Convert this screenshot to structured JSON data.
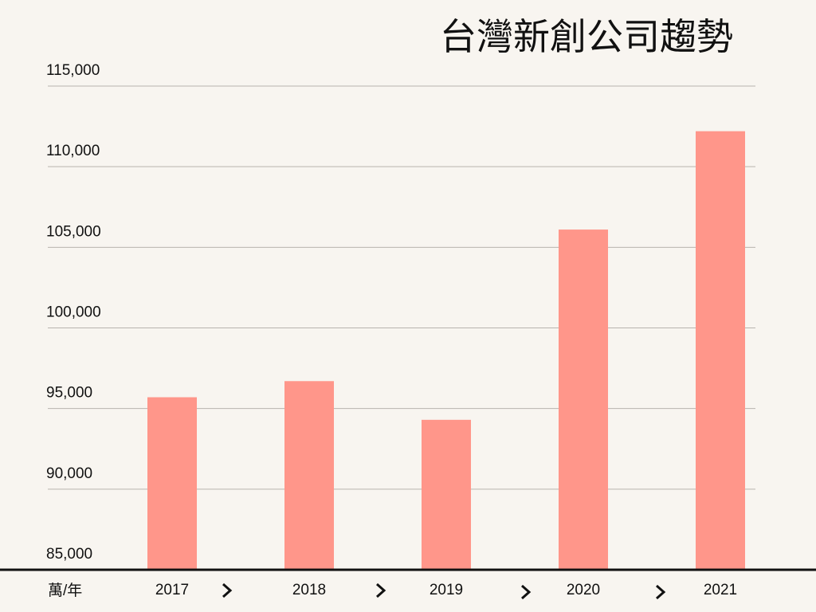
{
  "chart_data": {
    "type": "bar",
    "title": "台灣新創公司趨勢",
    "unit_label": "萬/年",
    "categories": [
      "2017",
      "2018",
      "2019",
      "2020",
      "2021"
    ],
    "values": [
      95700,
      96700,
      94300,
      106100,
      112200
    ],
    "color": "#ff968a",
    "ylim": [
      85000,
      115000
    ],
    "yticks": [
      {
        "value": 85000,
        "label": "85,000"
      },
      {
        "value": 90000,
        "label": "90,000"
      },
      {
        "value": 95000,
        "label": "95,000"
      },
      {
        "value": 100000,
        "label": "100,000"
      },
      {
        "value": 105000,
        "label": "105,000"
      },
      {
        "value": 110000,
        "label": "110,000"
      },
      {
        "value": 115000,
        "label": "115,000"
      }
    ],
    "grid": true
  }
}
